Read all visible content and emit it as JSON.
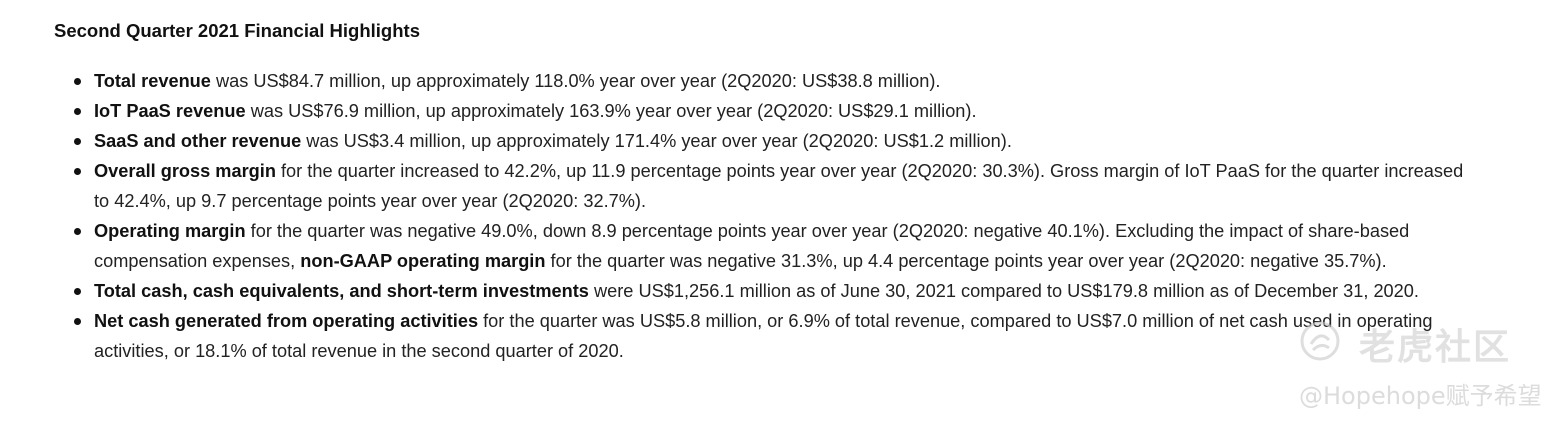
{
  "heading": "Second Quarter 2021 Financial Highlights",
  "items": [
    {
      "parts": [
        {
          "b": true,
          "t": "Total revenue"
        },
        {
          "b": false,
          "t": " was US$84.7 million, up approximately 118.0% year over year (2Q2020: US$38.8 million)."
        }
      ]
    },
    {
      "parts": [
        {
          "b": true,
          "t": "IoT PaaS revenue"
        },
        {
          "b": false,
          "t": " was US$76.9 million, up approximately 163.9% year over year (2Q2020: US$29.1 million)."
        }
      ]
    },
    {
      "parts": [
        {
          "b": true,
          "t": "SaaS and other revenue"
        },
        {
          "b": false,
          "t": " was US$3.4 million, up approximately 171.4% year over year (2Q2020: US$1.2 million)."
        }
      ]
    },
    {
      "parts": [
        {
          "b": true,
          "t": "Overall gross margin"
        },
        {
          "b": false,
          "t": " for the quarter increased to 42.2%, up 11.9 percentage points year over year (2Q2020: 30.3%). Gross margin of IoT PaaS for the quarter increased to 42.4%, up 9.7 percentage points year over year (2Q2020: 32.7%)."
        }
      ]
    },
    {
      "parts": [
        {
          "b": true,
          "t": "Operating margin"
        },
        {
          "b": false,
          "t": " for the quarter was negative 49.0%, down 8.9 percentage points year over year (2Q2020: negative 40.1%). Excluding the impact of share-based compensation expenses, "
        },
        {
          "b": true,
          "t": "non-GAAP operating margin"
        },
        {
          "b": false,
          "t": " for the quarter was negative 31.3%, up 4.4 percentage points year over year (2Q2020: negative 35.7%)."
        }
      ]
    },
    {
      "parts": [
        {
          "b": true,
          "t": "Total cash, cash equivalents, and short-term investments"
        },
        {
          "b": false,
          "t": " were US$1,256.1 million as of June 30, 2021 compared to US$179.8 million as of December 31, 2020."
        }
      ]
    },
    {
      "parts": [
        {
          "b": true,
          "t": "Net cash generated from operating activities"
        },
        {
          "b": false,
          "t": " for the quarter was US$5.8 million, or 6.9% of total revenue, compared to US$7.0 million of net cash used in operating activities, or 18.1% of total revenue in the second quarter of 2020."
        }
      ]
    }
  ],
  "watermark": {
    "brand": "老虎社区",
    "handle": "@Hopehope赋予希望"
  }
}
